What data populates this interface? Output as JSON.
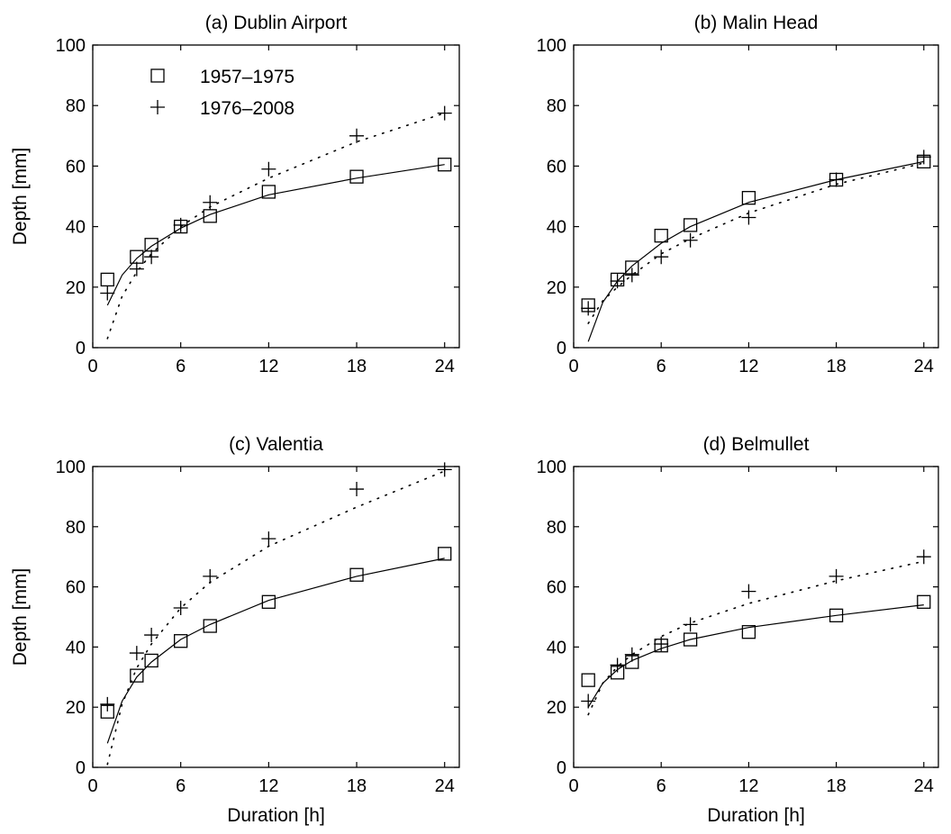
{
  "legend": {
    "items": [
      {
        "label": "1957–1975",
        "marker": "square",
        "line": "solid"
      },
      {
        "label": "1976–2008",
        "marker": "plus",
        "line": "dotted"
      }
    ]
  },
  "chart_data": [
    {
      "type": "scatter",
      "title": "(a) Dublin Airport",
      "xlabel": "",
      "ylabel": "Depth [mm]",
      "xlim": [
        0,
        25
      ],
      "ylim": [
        0,
        100
      ],
      "xticks": [
        0,
        6,
        12,
        18,
        24
      ],
      "yticks": [
        0,
        20,
        40,
        60,
        80,
        100
      ],
      "legend_position": "top-left",
      "series": [
        {
          "name": "1957–1975",
          "marker": "square",
          "line": "solid",
          "x": [
            1,
            3,
            4,
            6,
            8,
            12,
            18,
            24
          ],
          "y": [
            22.5,
            30,
            34,
            40,
            43.5,
            51.5,
            56.5,
            60.5
          ],
          "fit": {
            "x": [
              1,
              2,
              3,
              4,
              6,
              8,
              12,
              18,
              24
            ],
            "y": [
              14,
              24,
              29.5,
              33.5,
              39.5,
              44,
              50.5,
              56,
              60.5
            ]
          }
        },
        {
          "name": "1976–2008",
          "marker": "plus",
          "line": "dotted",
          "x": [
            1,
            3,
            4,
            6,
            8,
            12,
            18,
            24
          ],
          "y": [
            18,
            26,
            30,
            40.5,
            48,
            59,
            70,
            77.5
          ],
          "fit": {
            "x": [
              1,
              2,
              3,
              4,
              6,
              8,
              12,
              18,
              24
            ],
            "y": [
              3,
              17,
              25,
              31,
              40,
              46.5,
              56,
              68,
              77.5
            ]
          }
        }
      ]
    },
    {
      "type": "scatter",
      "title": "(b) Malin Head",
      "xlabel": "",
      "ylabel": "",
      "xlim": [
        0,
        25
      ],
      "ylim": [
        0,
        100
      ],
      "xticks": [
        0,
        6,
        12,
        18,
        24
      ],
      "yticks": [
        0,
        20,
        40,
        60,
        80,
        100
      ],
      "series": [
        {
          "name": "1957–1975",
          "marker": "square",
          "line": "solid",
          "x": [
            1,
            3,
            4,
            6,
            8,
            12,
            18,
            24
          ],
          "y": [
            14,
            22.5,
            26.5,
            37,
            40.5,
            49.5,
            55.5,
            61.5
          ],
          "fit": {
            "x": [
              1,
              2,
              3,
              4,
              6,
              8,
              12,
              18,
              24
            ],
            "y": [
              2,
              15,
              22,
              27,
              34.5,
              40,
              48,
              55.5,
              61.5
            ]
          }
        },
        {
          "name": "1976–2008",
          "marker": "plus",
          "line": "dotted",
          "x": [
            1,
            3,
            4,
            6,
            8,
            12,
            18,
            24
          ],
          "y": [
            13,
            22,
            24,
            30,
            35.5,
            43,
            55.5,
            63
          ],
          "fit": {
            "x": [
              1,
              2,
              3,
              4,
              6,
              8,
              12,
              18,
              24
            ],
            "y": [
              8,
              15.5,
              20,
              24,
              31,
              36,
              44.5,
              54,
              61
            ]
          }
        }
      ]
    },
    {
      "type": "scatter",
      "title": "(c) Valentia",
      "xlabel": "Duration [h]",
      "ylabel": "Depth [mm]",
      "xlim": [
        0,
        25
      ],
      "ylim": [
        0,
        100
      ],
      "xticks": [
        0,
        6,
        12,
        18,
        24
      ],
      "yticks": [
        0,
        20,
        40,
        60,
        80,
        100
      ],
      "series": [
        {
          "name": "1957–1975",
          "marker": "square",
          "line": "solid",
          "x": [
            1,
            3,
            4,
            6,
            8,
            12,
            18,
            24
          ],
          "y": [
            18.5,
            30.5,
            35.5,
            42,
            47,
            55,
            64,
            71
          ],
          "fit": {
            "x": [
              1,
              2,
              3,
              4,
              6,
              8,
              12,
              18,
              24
            ],
            "y": [
              8,
              22,
              30,
              35,
              42.5,
              47.5,
              55.5,
              63.5,
              69.5
            ]
          }
        },
        {
          "name": "1976–2008",
          "marker": "plus",
          "line": "dotted",
          "x": [
            1,
            3,
            4,
            6,
            8,
            12,
            18,
            24
          ],
          "y": [
            21,
            38,
            44,
            53,
            63.5,
            76,
            92.5,
            99
          ],
          "fit": {
            "x": [
              1,
              2,
              3,
              4,
              6,
              8,
              12,
              18,
              24
            ],
            "y": [
              1,
              21,
              33,
              41,
              53,
              61.5,
              73.5,
              86.5,
              98.5
            ]
          }
        }
      ]
    },
    {
      "type": "scatter",
      "title": "(d) Belmullet",
      "xlabel": "Duration [h]",
      "ylabel": "",
      "xlim": [
        0,
        25
      ],
      "ylim": [
        0,
        100
      ],
      "xticks": [
        0,
        6,
        12,
        18,
        24
      ],
      "yticks": [
        0,
        20,
        40,
        60,
        80,
        100
      ],
      "series": [
        {
          "name": "1957–1975",
          "marker": "square",
          "line": "solid",
          "x": [
            1,
            3,
            4,
            6,
            8,
            12,
            18,
            24
          ],
          "y": [
            29,
            31.5,
            35,
            40.5,
            42.5,
            45,
            50.5,
            55
          ],
          "fit": {
            "x": [
              1,
              2,
              3,
              4,
              6,
              8,
              12,
              18,
              24
            ],
            "y": [
              20,
              28,
              32.5,
              35.5,
              39.5,
              42.5,
              46.5,
              50.5,
              54
            ]
          }
        },
        {
          "name": "1976–2008",
          "marker": "plus",
          "line": "dotted",
          "x": [
            1,
            3,
            4,
            6,
            8,
            12,
            18,
            24
          ],
          "y": [
            22,
            34,
            37.5,
            41,
            47.5,
            58.5,
            63.5,
            70
          ],
          "fit": {
            "x": [
              1,
              2,
              3,
              4,
              6,
              8,
              12,
              18,
              24
            ],
            "y": [
              17.5,
              28,
              33.5,
              37.5,
              43.5,
              48,
              54.5,
              62,
              68.5
            ]
          }
        }
      ]
    }
  ]
}
